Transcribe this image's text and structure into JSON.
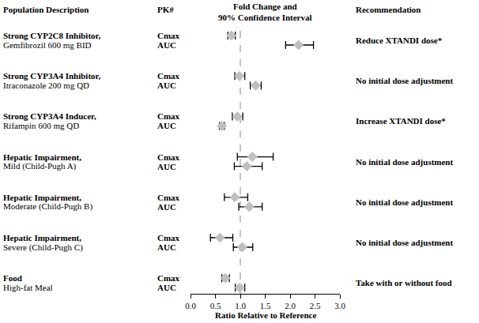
{
  "chart_data": {
    "type": "forest",
    "column_headers": {
      "population": "Population Description",
      "pk": "PK#",
      "effect": [
        "Fold Change and",
        "90% Confidence Interval"
      ],
      "recommendation": "Recommendation"
    },
    "x_label": "Ratio Relative to Reference",
    "xlim": [
      0,
      3
    ],
    "xticks": [
      {
        "value": 0,
        "label": "0.0"
      },
      0.5,
      {
        "value": 1,
        "label": "1.0"
      },
      1.5,
      {
        "value": 2,
        "label": "2.0"
      },
      2.5,
      {
        "value": 3,
        "label": "3.0"
      }
    ],
    "grid": false,
    "reference": 1,
    "marker": "diamond",
    "color": "#bfbfbf",
    "rows": [
      {
        "name": "Strong CYP2C8 Inhibitor,",
        "detail": "Gemfibrozil 600 mg BID",
        "recommendation": "Reduce XTANDI dose*",
        "parameters": [
          "Cmax",
          "AUC"
        ],
        "values": [
          0.82,
          2.17
        ],
        "lower": [
          0.75,
          1.91
        ],
        "upper": [
          0.9,
          2.47
        ]
      },
      {
        "name": "Strong CYP3A4 Inhibitor,",
        "detail": "Itraconazole 200 mg QD",
        "recommendation": "No initial dose adjustment",
        "parameters": [
          "Cmax",
          "AUC"
        ],
        "values": [
          0.98,
          1.31
        ],
        "lower": [
          0.89,
          1.2
        ],
        "upper": [
          1.09,
          1.42
        ]
      },
      {
        "name": "Strong CYP3A4 Inducer,",
        "detail": "Rifampin 600 mg QD",
        "recommendation": "Increase XTANDI dose*",
        "parameters": [
          "Cmax",
          "AUC"
        ],
        "values": [
          0.94,
          0.63
        ],
        "lower": [
          0.84,
          0.58
        ],
        "upper": [
          1.05,
          0.68
        ]
      },
      {
        "name": "Hepatic Impairment,",
        "detail": "Mild (Child-Pugh A)",
        "recommendation": "No initial dose adjustment",
        "parameters": [
          "Cmax",
          "AUC"
        ],
        "values": [
          1.24,
          1.13
        ],
        "lower": [
          0.94,
          0.88
        ],
        "upper": [
          1.66,
          1.44
        ]
      },
      {
        "name": "Hepatic Impairment,",
        "detail": "Moderate (Child-Pugh B)",
        "recommendation": "No initial dose adjustment",
        "parameters": [
          "Cmax",
          "AUC"
        ],
        "values": [
          0.89,
          1.18
        ],
        "lower": [
          0.68,
          0.97
        ],
        "upper": [
          1.15,
          1.44
        ]
      },
      {
        "name": "Hepatic Impairment,",
        "detail": "Severe (Child-Pugh C)",
        "recommendation": "No initial dose adjustment",
        "parameters": [
          "Cmax",
          "AUC"
        ],
        "values": [
          0.59,
          1.04
        ],
        "lower": [
          0.4,
          0.86
        ],
        "upper": [
          0.85,
          1.25
        ]
      },
      {
        "name": "Food",
        "detail": "High-fat Meal",
        "recommendation": "Take with or without food",
        "parameters": [
          "Cmax",
          "AUC"
        ],
        "values": [
          0.7,
          0.99
        ],
        "lower": [
          0.63,
          0.9
        ],
        "upper": [
          0.78,
          1.09
        ]
      }
    ]
  }
}
